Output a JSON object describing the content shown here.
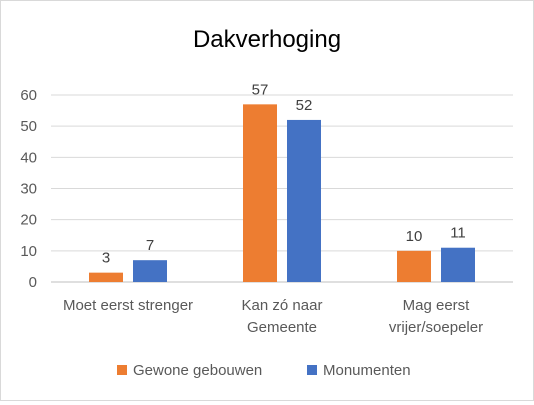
{
  "chart_data": {
    "type": "bar",
    "title": "Dakverhoging",
    "xlabel": "",
    "ylabel": "",
    "categories": [
      [
        "Moet eerst strenger"
      ],
      [
        "Kan zó naar",
        "Gemeente"
      ],
      [
        "Mag eerst",
        "vrijer/soepeler"
      ]
    ],
    "series": [
      {
        "name": "Gewone gebouwen",
        "color": "#ed7d31",
        "values": [
          3,
          57,
          10
        ]
      },
      {
        "name": "Monumenten",
        "color": "#4472c4",
        "values": [
          7,
          52,
          11
        ]
      }
    ],
    "ylim": [
      0,
      60
    ],
    "yticks": [
      0,
      10,
      20,
      30,
      40,
      50,
      60
    ],
    "grid": true,
    "legend": "bottom",
    "data_labels": true
  }
}
